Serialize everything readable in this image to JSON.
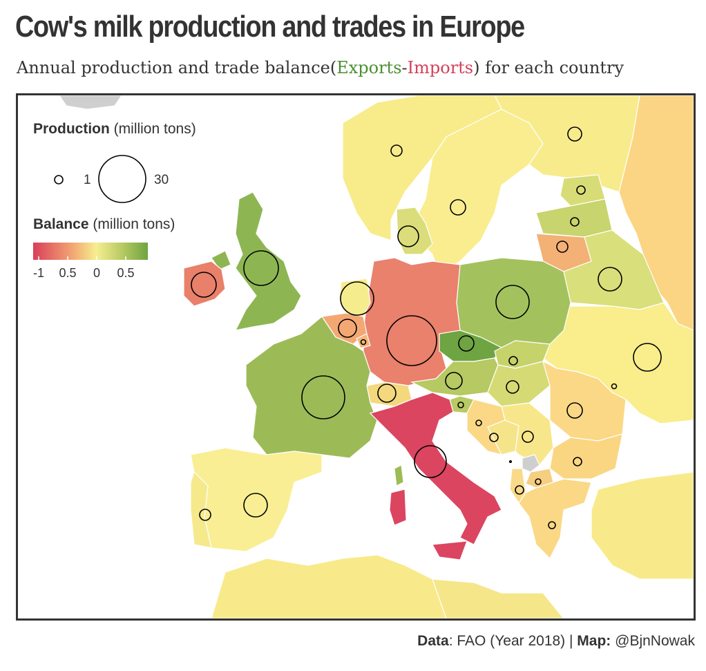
{
  "title": "Cow's milk production and trades in Europe",
  "subtitle": {
    "prefix": "Annual production and trade balance(",
    "exports": "Exports",
    "dash": "-",
    "imports": "Imports",
    "suffix": ") for each country"
  },
  "legend": {
    "production_title_bold": "Production",
    "production_title_rest": " (million tons)",
    "size_small_label": "1",
    "size_large_label": "30",
    "balance_title_bold": "Balance",
    "balance_title_rest": " (million tons)",
    "balance_ticks": [
      "-1",
      "0.5",
      "0",
      "0.5"
    ],
    "colors": {
      "negative": "#d93f5a",
      "neutral": "#f6ee90",
      "positive": "#6ea441"
    }
  },
  "caption": {
    "data_label": "Data",
    "data_text": ": FAO (Year 2018) | ",
    "map_label": "Map:",
    "map_text": " @BjnNowak"
  },
  "countries": [
    {
      "name": "France",
      "balance_level": "strong export",
      "fill": "#9cbb57"
    },
    {
      "name": "Germany",
      "balance_level": "import",
      "fill": "#e9816c"
    },
    {
      "name": "Italy",
      "balance_level": "strong import",
      "fill": "#db4560"
    },
    {
      "name": "United Kingdom",
      "balance_level": "export",
      "fill": "#8db653"
    },
    {
      "name": "Ireland",
      "balance_level": "import",
      "fill": "#e9806a"
    },
    {
      "name": "Poland",
      "balance_level": "export",
      "fill": "#a3c25e"
    },
    {
      "name": "Czechia",
      "balance_level": "strong export",
      "fill": "#6ea441"
    },
    {
      "name": "Spain",
      "balance_level": "neutral",
      "fill": "#f9ee93"
    },
    {
      "name": "Netherlands",
      "balance_level": "neutral",
      "fill": "#f5ec8d"
    },
    {
      "name": "Belgium",
      "balance_level": "slight import",
      "fill": "#f3a874"
    },
    {
      "name": "Lithuania",
      "balance_level": "slight import",
      "fill": "#f3b176"
    },
    {
      "name": "Romania",
      "balance_level": "slight import",
      "fill": "#fad886"
    }
  ]
}
